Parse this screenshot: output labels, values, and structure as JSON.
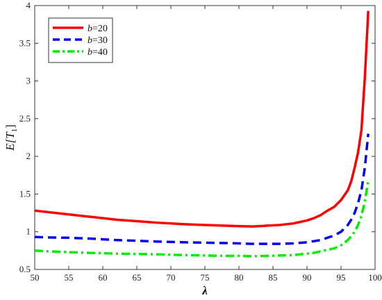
{
  "chart_data": {
    "type": "line",
    "xlabel": "λ",
    "ylabel": "E[T1]",
    "ylabel_parts": {
      "prefix": "E[",
      "var": "T",
      "sub": "1",
      "suffix": "]"
    },
    "xlim": [
      50,
      100
    ],
    "ylim": [
      0.5,
      4
    ],
    "xticks": [
      "50",
      "55",
      "60",
      "65",
      "70",
      "75",
      "80",
      "85",
      "90",
      "95",
      "100"
    ],
    "yticks": [
      "0.5",
      "1",
      "1.5",
      "2",
      "2.5",
      "3",
      "3.5",
      "4"
    ],
    "grid": false,
    "legend_position": "top-left",
    "x": [
      50,
      52,
      55,
      58,
      60,
      62,
      65,
      68,
      70,
      72,
      75,
      78,
      80,
      82,
      84,
      86,
      88,
      90,
      91,
      92,
      93,
      94,
      95,
      96,
      96.5,
      97,
      97.5,
      98,
      98.5,
      99
    ],
    "series": [
      {
        "name_prefix": "b",
        "name_value": "=20",
        "color": "#ff0000",
        "dash": "solid",
        "values": [
          1.28,
          1.26,
          1.23,
          1.2,
          1.18,
          1.16,
          1.14,
          1.12,
          1.11,
          1.1,
          1.09,
          1.08,
          1.075,
          1.07,
          1.08,
          1.09,
          1.11,
          1.15,
          1.18,
          1.22,
          1.28,
          1.33,
          1.42,
          1.55,
          1.67,
          1.85,
          2.05,
          2.35,
          3.05,
          3.93
        ]
      },
      {
        "name_prefix": "b",
        "name_value": "=30",
        "color": "#0000ff",
        "dash": "dashed",
        "values": [
          0.93,
          0.925,
          0.92,
          0.91,
          0.9,
          0.89,
          0.88,
          0.87,
          0.865,
          0.86,
          0.855,
          0.85,
          0.845,
          0.84,
          0.84,
          0.84,
          0.845,
          0.86,
          0.875,
          0.89,
          0.92,
          0.95,
          1.0,
          1.09,
          1.16,
          1.25,
          1.38,
          1.55,
          1.85,
          2.3
        ]
      },
      {
        "name_prefix": "b",
        "name_value": "=40",
        "color": "#00ee00",
        "dash": "dashdot",
        "values": [
          0.75,
          0.74,
          0.73,
          0.72,
          0.715,
          0.71,
          0.705,
          0.7,
          0.695,
          0.69,
          0.685,
          0.68,
          0.68,
          0.675,
          0.68,
          0.685,
          0.69,
          0.71,
          0.72,
          0.74,
          0.76,
          0.78,
          0.82,
          0.89,
          0.94,
          1.0,
          1.09,
          1.21,
          1.4,
          1.68
        ]
      }
    ]
  }
}
